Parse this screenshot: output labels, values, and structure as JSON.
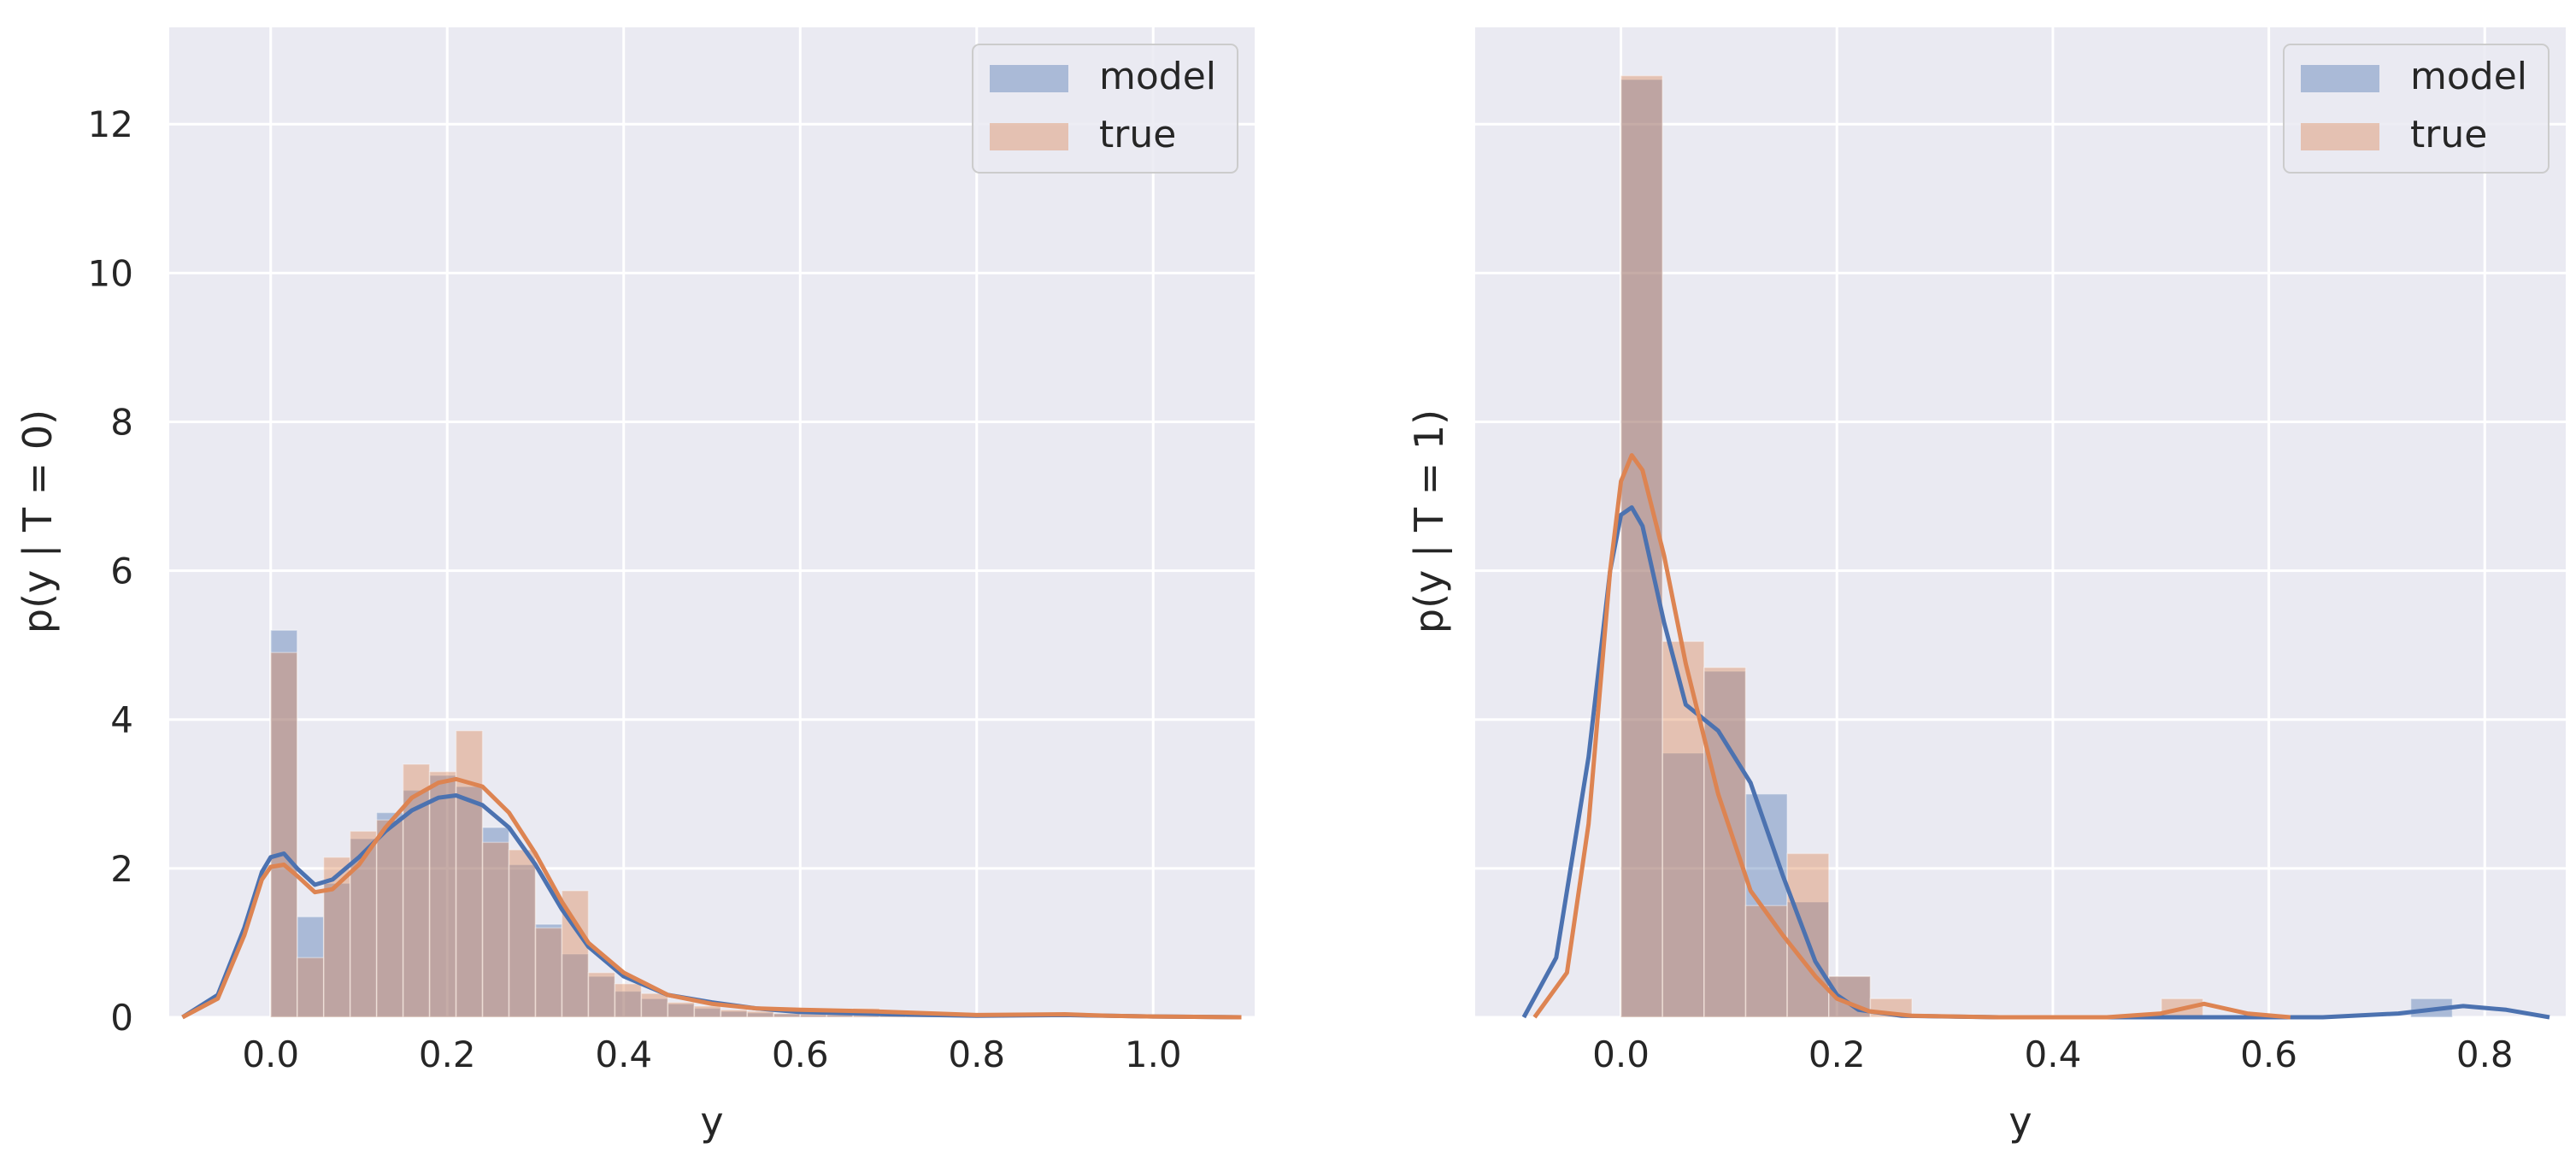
{
  "colors": {
    "model": "#4c72b0",
    "true": "#dd8452",
    "axes_bg": "#eaeaf2",
    "grid": "#ffffff"
  },
  "chart_data": [
    {
      "type": "histogram+kde",
      "xlabel": "y",
      "ylabel": "p(y | T = 0)",
      "xlim": [
        -0.115,
        1.115
      ],
      "ylim": [
        0,
        13.3
      ],
      "xticks": [
        0.0,
        0.2,
        0.4,
        0.6,
        0.8,
        1.0
      ],
      "xtick_labels": [
        "0.0",
        "0.2",
        "0.4",
        "0.6",
        "0.8",
        "1.0"
      ],
      "yticks": [
        0,
        2,
        4,
        6,
        8,
        10,
        12
      ],
      "ytick_labels": [
        "0",
        "2",
        "4",
        "6",
        "8",
        "10",
        "12"
      ],
      "grid": true,
      "legend": {
        "position": "top-right",
        "entries": [
          "model",
          "true"
        ]
      },
      "series": [
        {
          "name": "model",
          "bin_width": 0.03,
          "bin_starts": [
            0.0,
            0.03,
            0.06,
            0.09,
            0.12,
            0.15,
            0.18,
            0.21,
            0.24,
            0.27,
            0.3,
            0.33,
            0.36,
            0.39,
            0.42,
            0.45,
            0.48,
            0.51,
            0.54,
            0.57,
            0.6,
            0.63,
            0.66,
            0.69,
            0.72,
            0.75,
            0.78,
            0.81,
            0.84,
            0.87,
            0.9
          ],
          "heights": [
            5.2,
            1.35,
            1.8,
            2.4,
            2.75,
            3.05,
            3.25,
            3.1,
            2.55,
            2.05,
            1.25,
            0.85,
            0.55,
            0.35,
            0.25,
            0.18,
            0.12,
            0.08,
            0.06,
            0.05,
            0.03,
            0.03,
            0.02,
            0.02,
            0.01,
            0.01,
            0.01,
            0.0,
            0.0,
            0.0,
            0.03
          ],
          "kde_x": [
            -0.1,
            -0.06,
            -0.03,
            -0.01,
            0.0,
            0.015,
            0.03,
            0.05,
            0.07,
            0.1,
            0.13,
            0.16,
            0.19,
            0.21,
            0.24,
            0.27,
            0.3,
            0.33,
            0.36,
            0.4,
            0.45,
            0.5,
            0.55,
            0.6,
            0.7,
            0.8,
            0.9,
            0.95,
            1.0,
            1.1
          ],
          "kde_y": [
            0.0,
            0.3,
            1.2,
            1.95,
            2.15,
            2.2,
            2.0,
            1.78,
            1.85,
            2.15,
            2.5,
            2.78,
            2.95,
            2.98,
            2.85,
            2.55,
            2.05,
            1.45,
            0.95,
            0.55,
            0.3,
            0.2,
            0.12,
            0.07,
            0.04,
            0.02,
            0.03,
            0.02,
            0.01,
            0.0
          ]
        },
        {
          "name": "true",
          "bin_width": 0.03,
          "bin_starts": [
            0.0,
            0.03,
            0.06,
            0.09,
            0.12,
            0.15,
            0.18,
            0.21,
            0.24,
            0.27,
            0.3,
            0.33,
            0.36,
            0.39,
            0.42,
            0.45,
            0.48,
            0.51,
            0.54,
            0.57,
            0.6,
            0.63,
            0.66,
            0.69,
            0.72,
            0.75,
            0.78,
            0.81,
            0.84,
            0.87,
            0.9
          ],
          "heights": [
            4.9,
            0.8,
            2.15,
            2.5,
            2.65,
            3.4,
            3.3,
            3.85,
            2.35,
            2.25,
            1.2,
            1.7,
            0.6,
            0.45,
            0.32,
            0.2,
            0.15,
            0.1,
            0.08,
            0.05,
            0.05,
            0.04,
            0.12,
            0.03,
            0.02,
            0.02,
            0.02,
            0.01,
            0.01,
            0.01,
            0.01
          ],
          "kde_x": [
            -0.1,
            -0.06,
            -0.03,
            -0.01,
            0.0,
            0.015,
            0.03,
            0.05,
            0.07,
            0.1,
            0.13,
            0.16,
            0.19,
            0.21,
            0.24,
            0.27,
            0.3,
            0.33,
            0.36,
            0.4,
            0.45,
            0.5,
            0.55,
            0.6,
            0.68,
            0.8,
            0.9,
            0.95,
            1.0,
            1.1
          ],
          "kde_y": [
            0.0,
            0.25,
            1.1,
            1.85,
            2.02,
            2.05,
            1.9,
            1.68,
            1.72,
            2.05,
            2.55,
            2.95,
            3.15,
            3.2,
            3.1,
            2.75,
            2.2,
            1.55,
            1.0,
            0.6,
            0.3,
            0.18,
            0.12,
            0.1,
            0.08,
            0.03,
            0.04,
            0.02,
            0.01,
            0.0
          ]
        }
      ]
    },
    {
      "type": "histogram+kde",
      "xlabel": "y",
      "ylabel": "p(y | T = 1)",
      "xlim": [
        -0.135,
        0.875
      ],
      "ylim": [
        0,
        13.3
      ],
      "xticks": [
        0.0,
        0.2,
        0.4,
        0.6,
        0.8
      ],
      "xtick_labels": [
        "0.0",
        "0.2",
        "0.4",
        "0.6",
        "0.8"
      ],
      "yticks": [
        0,
        2,
        4,
        6,
        8,
        10,
        12
      ],
      "ytick_labels": [],
      "grid": true,
      "legend": {
        "position": "top-right",
        "entries": [
          "model",
          "true"
        ]
      },
      "series": [
        {
          "name": "model",
          "bin_width": 0.0385,
          "bin_starts": [
            0.0,
            0.0385,
            0.077,
            0.1155,
            0.154,
            0.1925,
            0.231,
            0.2695,
            0.308,
            0.3465,
            0.385,
            0.4235,
            0.462,
            0.5005,
            0.539,
            0.5775,
            0.616,
            0.6545,
            0.693,
            0.7315
          ],
          "heights": [
            12.6,
            3.55,
            4.65,
            3.0,
            1.55,
            0.55,
            0.0,
            0.0,
            0.0,
            0.0,
            0.0,
            0.0,
            0.0,
            0.0,
            0.0,
            0.0,
            0.0,
            0.0,
            0.0,
            0.25
          ],
          "kde_x": [
            -0.09,
            -0.06,
            -0.03,
            -0.01,
            0.0,
            0.01,
            0.02,
            0.04,
            0.06,
            0.09,
            0.12,
            0.15,
            0.18,
            0.2,
            0.22,
            0.26,
            0.35,
            0.5,
            0.6,
            0.65,
            0.72,
            0.78,
            0.82,
            0.86
          ],
          "kde_y": [
            0.0,
            0.8,
            3.5,
            6.0,
            6.75,
            6.85,
            6.6,
            5.3,
            4.2,
            3.85,
            3.15,
            1.9,
            0.75,
            0.3,
            0.1,
            0.02,
            0.0,
            0.0,
            0.0,
            0.0,
            0.05,
            0.15,
            0.1,
            0.0
          ]
        },
        {
          "name": "true",
          "bin_width": 0.0385,
          "bin_starts": [
            0.0,
            0.0385,
            0.077,
            0.1155,
            0.154,
            0.1925,
            0.231,
            0.2695,
            0.308,
            0.3465,
            0.385,
            0.4235,
            0.462,
            0.5005,
            0.539,
            0.5775
          ],
          "heights": [
            12.65,
            5.05,
            4.7,
            1.5,
            2.2,
            0.55,
            0.25,
            0.0,
            0.0,
            0.0,
            0.0,
            0.0,
            0.0,
            0.25,
            0.0,
            0.0
          ],
          "kde_x": [
            -0.08,
            -0.05,
            -0.03,
            -0.01,
            0.0,
            0.01,
            0.02,
            0.04,
            0.06,
            0.09,
            0.12,
            0.15,
            0.18,
            0.2,
            0.23,
            0.27,
            0.35,
            0.45,
            0.5,
            0.54,
            0.58,
            0.62
          ],
          "kde_y": [
            0.0,
            0.6,
            2.6,
            6.0,
            7.2,
            7.55,
            7.35,
            6.2,
            4.75,
            3.0,
            1.7,
            1.1,
            0.55,
            0.25,
            0.08,
            0.02,
            0.0,
            0.0,
            0.05,
            0.18,
            0.05,
            0.0
          ]
        }
      ]
    }
  ]
}
